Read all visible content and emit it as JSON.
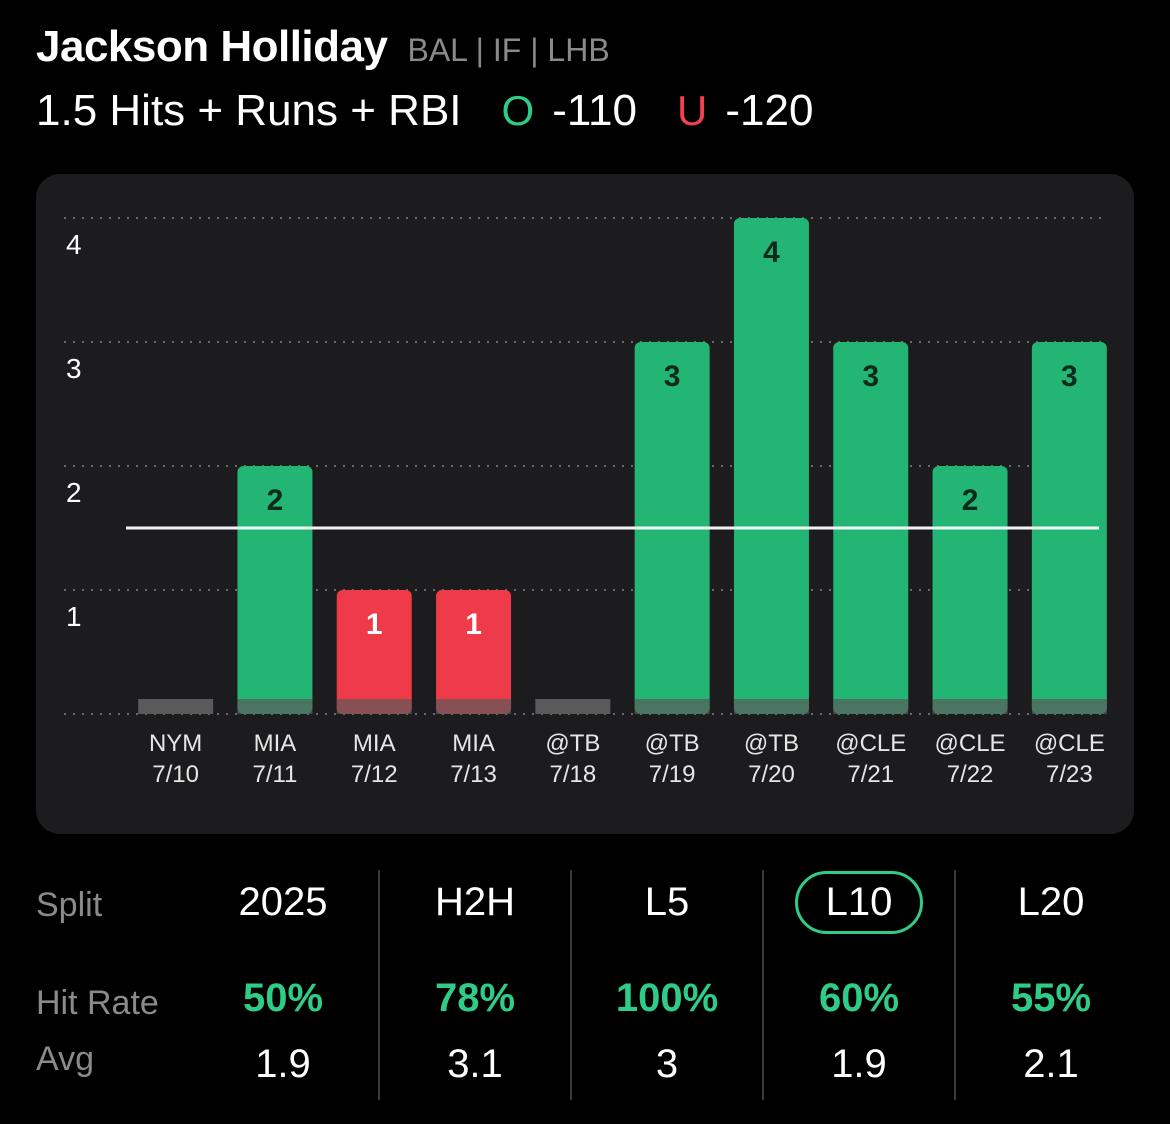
{
  "player": {
    "name": "Jackson Holliday",
    "meta": "BAL | IF | LHB"
  },
  "prop": {
    "line_label": "1.5 Hits + Runs + RBI",
    "over_symbol": "O",
    "over_odds": "-110",
    "under_symbol": "U",
    "under_odds": "-120"
  },
  "colors": {
    "over": "#2ecc87",
    "under": "#ef4450",
    "bar_hit": "#22b573",
    "bar_miss": "#ef3b49",
    "base": "#5a5a5a"
  },
  "chart_data": {
    "type": "bar",
    "line": 1.5,
    "ylim": [
      0,
      4
    ],
    "yticks": [
      1,
      2,
      3,
      4
    ],
    "grid": true,
    "categories": [
      {
        "opp": "NYM",
        "date": "7/10",
        "value": 0
      },
      {
        "opp": "MIA",
        "date": "7/11",
        "value": 2
      },
      {
        "opp": "MIA",
        "date": "7/12",
        "value": 1
      },
      {
        "opp": "MIA",
        "date": "7/13",
        "value": 1
      },
      {
        "opp": "@TB",
        "date": "7/18",
        "value": 0
      },
      {
        "opp": "@TB",
        "date": "7/19",
        "value": 3
      },
      {
        "opp": "@TB",
        "date": "7/20",
        "value": 4
      },
      {
        "opp": "@CLE",
        "date": "7/21",
        "value": 3
      },
      {
        "opp": "@CLE",
        "date": "7/22",
        "value": 2
      },
      {
        "opp": "@CLE",
        "date": "7/23",
        "value": 3
      }
    ]
  },
  "splits": {
    "row_labels": {
      "split": "Split",
      "hit_rate": "Hit Rate",
      "avg": "Avg"
    },
    "columns": [
      {
        "name": "2025",
        "hit_rate": "50%",
        "avg": "1.9",
        "selected": false
      },
      {
        "name": "H2H",
        "hit_rate": "78%",
        "avg": "3.1",
        "selected": false
      },
      {
        "name": "L5",
        "hit_rate": "100%",
        "avg": "3",
        "selected": false
      },
      {
        "name": "L10",
        "hit_rate": "60%",
        "avg": "1.9",
        "selected": true
      },
      {
        "name": "L20",
        "hit_rate": "55%",
        "avg": "2.1",
        "selected": false
      }
    ]
  }
}
